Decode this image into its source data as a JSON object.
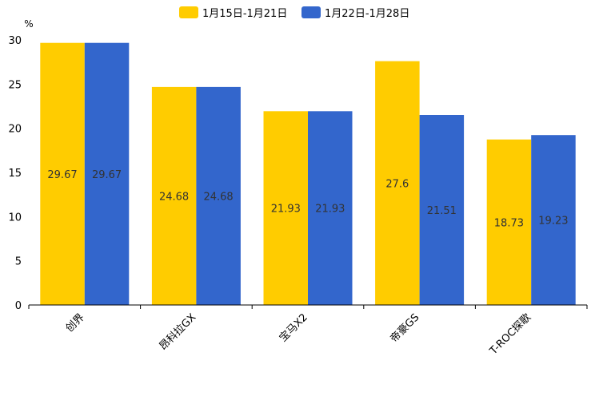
{
  "chart_data": {
    "type": "bar",
    "title": "",
    "xlabel": "",
    "ylabel": "%",
    "ylim": [
      0,
      30
    ],
    "yticks": [
      0,
      5,
      10,
      15,
      20,
      25,
      30
    ],
    "grid": false,
    "legend_position": "top-center",
    "categories": [
      "创界",
      "昂科拉GX",
      "宝马X2",
      "帝豪GS",
      "T-ROC探歌"
    ],
    "series": [
      {
        "name": "1月15日-1月21日",
        "color": "#ffcc00",
        "values": [
          29.67,
          24.68,
          21.93,
          27.6,
          18.73
        ],
        "labels": [
          "29.67",
          "24.68",
          "21.93",
          "27.6",
          "18.73"
        ]
      },
      {
        "name": "1月22日-1月28日",
        "color": "#3366cc",
        "values": [
          29.67,
          24.68,
          21.93,
          21.51,
          19.23
        ],
        "labels": [
          "29.67",
          "24.68",
          "21.93",
          "21.51",
          "19.23"
        ]
      }
    ]
  }
}
